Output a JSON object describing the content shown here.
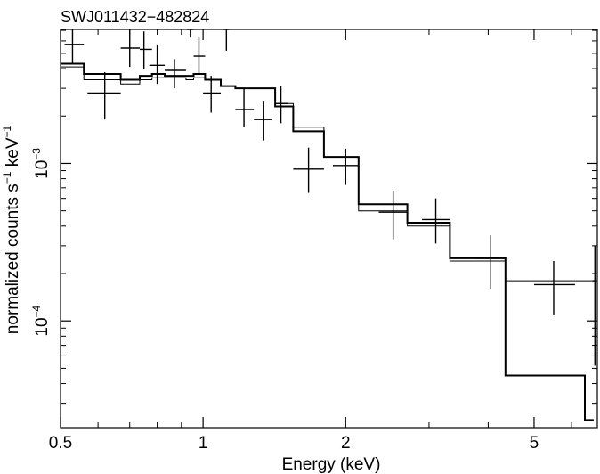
{
  "chart_data": {
    "type": "line",
    "title": "SWJ011432−482824",
    "xlabel": "Energy (keV)",
    "ylabel_main": "normalized counts s",
    "ylabel_exp1": "−1",
    "ylabel_mid": " keV",
    "ylabel_exp2": "−1",
    "x_scale": "log",
    "y_scale": "log",
    "xlim": [
      0.5,
      6.8
    ],
    "ylim": [
      2.1e-05,
      0.0071
    ],
    "x_ticks": [
      {
        "value": 0.5,
        "label": "0.5"
      },
      {
        "value": 1,
        "label": "1"
      },
      {
        "value": 2,
        "label": "2"
      },
      {
        "value": 5,
        "label": "5"
      }
    ],
    "x_minor_ticks": [
      0.6,
      0.7,
      0.8,
      0.9,
      3,
      4,
      6
    ],
    "y_ticks": [
      {
        "value": 0.001,
        "base": "10",
        "exp": "−3"
      },
      {
        "value": 0.0001,
        "base": "10",
        "exp": "−4"
      }
    ],
    "y_minor_ticks": [
      3e-05,
      4e-05,
      5e-05,
      6e-05,
      7e-05,
      8e-05,
      9e-05,
      0.0002,
      0.0003,
      0.0004,
      0.0005,
      0.0006,
      0.0007,
      0.0008,
      0.0009,
      0.002,
      0.003,
      0.004,
      0.005,
      0.006,
      0.007
    ],
    "data_points": [
      {
        "x": 0.53,
        "xlo": 0.51,
        "xhi": 0.56,
        "y": 0.0057,
        "ylo": 0.0043,
        "yhi": 0.0071
      },
      {
        "x": 0.62,
        "xlo": 0.57,
        "xhi": 0.67,
        "y": 0.0028,
        "ylo": 0.0019,
        "yhi": 0.0038
      },
      {
        "x": 0.7,
        "xlo": 0.67,
        "xhi": 0.735,
        "y": 0.0054,
        "ylo": 0.0041,
        "yhi": 0.0071
      },
      {
        "x": 0.75,
        "xlo": 0.735,
        "xhi": 0.78,
        "y": 0.0053,
        "ylo": 0.004,
        "yhi": 0.0069
      },
      {
        "x": 0.8,
        "xlo": 0.77,
        "xhi": 0.83,
        "y": 0.0042,
        "ylo": 0.0032,
        "yhi": 0.0057
      },
      {
        "x": 0.87,
        "xlo": 0.83,
        "xhi": 0.92,
        "y": 0.0039,
        "ylo": 0.003,
        "yhi": 0.0046
      },
      {
        "x": 0.94,
        "xlo": 0.925,
        "xhi": 0.955,
        "y": 0.0079,
        "ylo": 0.0063,
        "yhi": 0.01
      },
      {
        "x": 0.98,
        "xlo": 0.955,
        "xhi": 1.01,
        "y": 0.0048,
        "ylo": 0.0037,
        "yhi": 0.0063
      },
      {
        "x": 1.04,
        "xlo": 1.0,
        "xhi": 1.09,
        "y": 0.0028,
        "ylo": 0.0021,
        "yhi": 0.0036
      },
      {
        "x": 1.12,
        "xlo": 1.105,
        "xhi": 1.135,
        "y": 0.0074,
        "ylo": 0.0052,
        "yhi": 0.01
      },
      {
        "x": 1.22,
        "xlo": 1.17,
        "xhi": 1.28,
        "y": 0.0022,
        "ylo": 0.0017,
        "yhi": 0.003
      },
      {
        "x": 1.34,
        "xlo": 1.28,
        "xhi": 1.4,
        "y": 0.0019,
        "ylo": 0.0014,
        "yhi": 0.0025
      },
      {
        "x": 1.46,
        "xlo": 1.42,
        "xhi": 1.51,
        "y": 0.0024,
        "ylo": 0.0018,
        "yhi": 0.0031
      },
      {
        "x": 1.67,
        "xlo": 1.55,
        "xhi": 1.8,
        "y": 0.00092,
        "ylo": 0.00065,
        "yhi": 0.00126
      },
      {
        "x": 2.0,
        "xlo": 1.88,
        "xhi": 2.13,
        "y": 0.00097,
        "ylo": 0.00073,
        "yhi": 0.00124
      },
      {
        "x": 2.52,
        "xlo": 2.35,
        "xhi": 2.7,
        "y": 0.00049,
        "ylo": 0.00033,
        "yhi": 0.00067
      },
      {
        "x": 3.1,
        "xlo": 2.9,
        "xhi": 3.32,
        "y": 0.00044,
        "ylo": 0.00031,
        "yhi": 0.0006
      },
      {
        "x": 4.05,
        "xlo": 3.75,
        "xhi": 4.35,
        "y": 0.00025,
        "ylo": 0.00016,
        "yhi": 0.00035
      },
      {
        "x": 5.5,
        "xlo": 5.0,
        "xhi": 6.1,
        "y": 0.00017,
        "ylo": 0.00011,
        "yhi": 0.00024
      },
      {
        "x": 6.72,
        "xlo": 6.65,
        "xhi": 6.78,
        "y": 0.00018,
        "ylo": 5.2e-05,
        "yhi": 0.0003
      }
    ],
    "series": [
      {
        "style": "thick",
        "edges": [
          0.5,
          0.56,
          0.67,
          0.735,
          0.78,
          0.83,
          0.92,
          0.955,
          1.01,
          1.09,
          1.17,
          1.28,
          1.42,
          1.55,
          1.8,
          2.13,
          2.7,
          3.32,
          4.35,
          6.4,
          6.68
        ],
        "values": [
          0.0043,
          0.0037,
          0.0034,
          0.0036,
          0.0037,
          0.0036,
          0.0036,
          0.0037,
          0.0034,
          0.0031,
          0.003,
          0.003,
          0.0023,
          0.0016,
          0.0011,
          0.00055,
          0.00042,
          0.00025,
          4.5e-05,
          2.35e-05
        ]
      },
      {
        "style": "thin",
        "edges": [
          0.5,
          0.56,
          0.67,
          0.735,
          0.78,
          0.83,
          0.92,
          0.955,
          1.01,
          1.09,
          1.17,
          1.28,
          1.42,
          1.55,
          1.8,
          2.13,
          2.7,
          3.32,
          4.35,
          6.4,
          6.68
        ],
        "values": [
          0.0041,
          0.0034,
          0.0032,
          0.0034,
          0.0035,
          0.0035,
          0.0034,
          0.0035,
          0.0034,
          0.0031,
          0.003,
          0.003,
          0.0024,
          0.0017,
          0.0011,
          0.0005,
          0.0004,
          0.00024,
          0.00018,
          0.00018
        ]
      }
    ]
  }
}
